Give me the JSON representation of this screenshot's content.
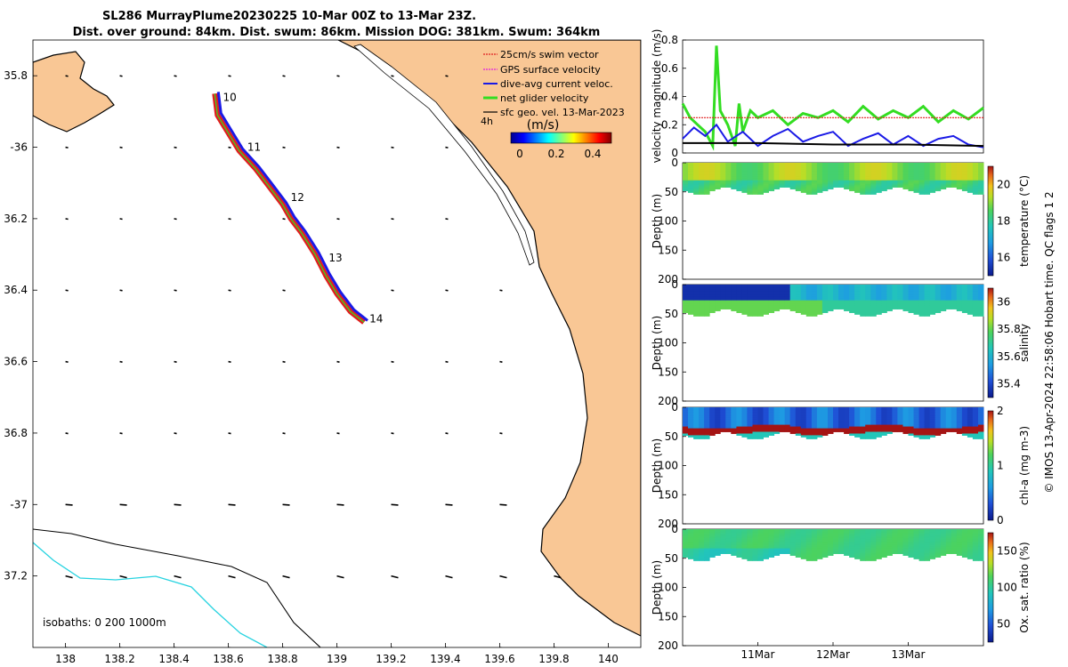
{
  "title": {
    "line1": "SL286 MurrayPlume20230225 10-Mar 00Z to 13-Mar 23Z.",
    "line2": "Dist. over ground: 84km. Dist. swum: 86km. Mission DOG: 381km. Swum: 364km"
  },
  "colors": {
    "land": "#f9c795",
    "ocean": "#ffffff",
    "isobath_200": "#000000",
    "isobath_1000": "#27d3e0",
    "swim": "#e02020",
    "gps": "#e020e0",
    "dive_avg": "#1a1ae6",
    "net": "#33dd22",
    "geo": "#000000"
  },
  "chart_data": [
    {
      "type": "map",
      "name": "glider-track-map",
      "xlim": [
        137.88,
        140.12
      ],
      "ylim": [
        -37.4,
        -35.7
      ],
      "x_ticks": [
        138,
        138.2,
        138.4,
        138.6,
        138.8,
        139,
        139.2,
        139.4,
        139.6,
        139.8,
        140
      ],
      "x_tick_labels": [
        "138",
        "138.2",
        "138.4",
        "138.6",
        "138.8",
        "139",
        "139.2",
        "139.4",
        "139.6",
        "139.8",
        "140"
      ],
      "y_ticks": [
        -35.8,
        -36,
        -36.2,
        -36.4,
        -36.6,
        -36.8,
        -37,
        -37.2
      ],
      "y_tick_labels": [
        "35.8",
        "-36",
        "36.2",
        "36.4",
        "36.6",
        "36.8",
        "-37",
        "37.2"
      ],
      "legend": [
        {
          "label": "25cm/s swim vector",
          "color": "#e02020"
        },
        {
          "label": "GPS surface velocity",
          "color": "#e020e0"
        },
        {
          "label": "dive-avg current veloc.",
          "color": "#1a1ae6"
        },
        {
          "label": "net glider velocity",
          "color": "#33dd22"
        },
        {
          "label": "sfc geo. vel. 13-Mar-2023",
          "color": "#000000"
        }
      ],
      "legend_extra": "4h",
      "colorbar": {
        "label": "(m/s)",
        "ticks": [
          0,
          0.2,
          0.4
        ],
        "tick_labels": [
          "0",
          "0.2",
          "0.4"
        ],
        "range": [
          0,
          0.5
        ]
      },
      "isobath_note": "isobaths: 0   200  1000m",
      "track": [
        {
          "lon": 138.55,
          "lat": -35.85
        },
        {
          "lon": 138.56,
          "lat": -35.91
        },
        {
          "lon": 138.6,
          "lat": -35.96
        },
        {
          "lon": 138.64,
          "lat": -36.01
        },
        {
          "lon": 138.7,
          "lat": -36.06
        },
        {
          "lon": 138.75,
          "lat": -36.11
        },
        {
          "lon": 138.8,
          "lat": -36.16
        },
        {
          "lon": 138.83,
          "lat": -36.2
        },
        {
          "lon": 138.87,
          "lat": -36.24
        },
        {
          "lon": 138.92,
          "lat": -36.3
        },
        {
          "lon": 138.96,
          "lat": -36.36
        },
        {
          "lon": 139.0,
          "lat": -36.41
        },
        {
          "lon": 139.05,
          "lat": -36.46
        },
        {
          "lon": 139.1,
          "lat": -36.49
        }
      ],
      "day_labels": [
        {
          "label": "10",
          "lon": 138.58,
          "lat": -35.86
        },
        {
          "label": "11",
          "lon": 138.67,
          "lat": -36.0
        },
        {
          "label": "12",
          "lon": 138.83,
          "lat": -36.14
        },
        {
          "label": "13",
          "lon": 138.97,
          "lat": -36.31
        },
        {
          "label": "14",
          "lon": 139.12,
          "lat": -36.48
        }
      ]
    },
    {
      "type": "line",
      "name": "velocity-magnitude",
      "ylabel": "velocity magnitude (m/s)",
      "ylim": [
        0,
        0.8
      ],
      "y_ticks": [
        0,
        0.2,
        0.4,
        0.6,
        0.8
      ],
      "y_tick_labels": [
        "0",
        "0.2",
        "0.4",
        "0.6",
        "0.8"
      ],
      "xlim": [
        10.0,
        14.0
      ],
      "series": [
        {
          "name": "net glider velocity",
          "color": "#33dd22",
          "x": [
            10.0,
            10.1,
            10.2,
            10.3,
            10.4,
            10.45,
            10.5,
            10.6,
            10.7,
            10.75,
            10.8,
            10.9,
            11.0,
            11.2,
            11.4,
            11.6,
            11.8,
            12.0,
            12.2,
            12.4,
            12.6,
            12.8,
            13.0,
            13.2,
            13.4,
            13.6,
            13.8,
            14.0
          ],
          "values": [
            0.35,
            0.25,
            0.2,
            0.15,
            0.05,
            0.76,
            0.3,
            0.2,
            0.05,
            0.35,
            0.15,
            0.3,
            0.25,
            0.3,
            0.2,
            0.28,
            0.25,
            0.3,
            0.22,
            0.33,
            0.24,
            0.3,
            0.25,
            0.33,
            0.22,
            0.3,
            0.24,
            0.32
          ]
        },
        {
          "name": "swim vector",
          "color": "#e02020",
          "x": [
            10.0,
            14.0
          ],
          "values": [
            0.25,
            0.25
          ]
        },
        {
          "name": "dive-avg current veloc.",
          "color": "#1a1ae6",
          "x": [
            10.0,
            10.15,
            10.3,
            10.45,
            10.6,
            10.8,
            11.0,
            11.2,
            11.4,
            11.6,
            11.8,
            12.0,
            12.2,
            12.4,
            12.6,
            12.8,
            13.0,
            13.2,
            13.4,
            13.6,
            13.8,
            14.0
          ],
          "values": [
            0.1,
            0.18,
            0.12,
            0.2,
            0.08,
            0.15,
            0.05,
            0.12,
            0.17,
            0.08,
            0.12,
            0.15,
            0.05,
            0.1,
            0.14,
            0.06,
            0.12,
            0.05,
            0.1,
            0.12,
            0.06,
            0.04
          ]
        },
        {
          "name": "sfc geo. vel.",
          "color": "#000000",
          "x": [
            10.0,
            11.0,
            12.0,
            13.0,
            14.0
          ],
          "values": [
            0.07,
            0.07,
            0.06,
            0.06,
            0.05
          ]
        }
      ]
    },
    {
      "type": "heatmap",
      "name": "temperature-section",
      "ylabel": "Depth (m)",
      "ylim": [
        0,
        200
      ],
      "y_ticks": [
        0,
        50,
        100,
        150,
        200
      ],
      "y_tick_labels": [
        "0",
        "50",
        "100",
        "150",
        "200"
      ],
      "colorbar": {
        "label": "temperature (°C)",
        "range": [
          15,
          21
        ],
        "ticks": [
          16,
          18,
          20
        ],
        "tick_labels": [
          "16",
          "18",
          "20"
        ]
      },
      "surface_value": 19.0,
      "lower_value": 18.3,
      "mixed_layer_depth_m": 30,
      "max_data_depth_m": 55
    },
    {
      "type": "heatmap",
      "name": "salinity-section",
      "ylabel": "Depth (m)",
      "ylim": [
        0,
        200
      ],
      "y_ticks": [
        0,
        50,
        100,
        150,
        200
      ],
      "y_tick_labels": [
        "0",
        "50",
        "100",
        "150",
        "200"
      ],
      "colorbar": {
        "label": "salinity",
        "range": [
          35.3,
          36.1
        ],
        "ticks": [
          35.4,
          35.6,
          35.8,
          36
        ],
        "tick_labels": [
          "35.4",
          "35.6",
          "35.8",
          "36"
        ]
      },
      "surface_value": 35.5,
      "lower_value": 35.8,
      "mixed_layer_depth_m": 25,
      "max_data_depth_m": 55
    },
    {
      "type": "heatmap",
      "name": "chlorophyll-section",
      "ylabel": "Depth (m)",
      "ylim": [
        0,
        200
      ],
      "y_ticks": [
        0,
        50,
        100,
        150,
        200
      ],
      "y_tick_labels": [
        "0",
        "50",
        "100",
        "150",
        "200"
      ],
      "colorbar": {
        "label": "chl-a (mg m-3)",
        "range": [
          0,
          2
        ],
        "ticks": [
          0,
          1,
          2
        ],
        "tick_labels": [
          "0",
          "1",
          "2"
        ]
      },
      "surface_value": 0.4,
      "max_layer_value": 2.0,
      "max_layer_depth_m": 38,
      "max_data_depth_m": 55
    },
    {
      "type": "heatmap",
      "name": "oxygen-section",
      "ylabel": "Depth (m)",
      "ylim": [
        0,
        200
      ],
      "y_ticks": [
        0,
        50,
        100,
        150,
        200
      ],
      "y_tick_labels": [
        "0",
        "50",
        "100",
        "150",
        "200"
      ],
      "x_tick_labels": [
        "11Mar",
        "12Mar",
        "13Mar"
      ],
      "x_ticks": [
        11,
        12,
        13
      ],
      "colorbar": {
        "label": "Ox. sat. ratio (%)",
        "range": [
          25,
          175
        ],
        "ticks": [
          50,
          100,
          150
        ],
        "tick_labels": [
          "50",
          "100",
          "150"
        ]
      },
      "surface_value": 108,
      "max_data_depth_m": 55
    }
  ],
  "side_note": "© IMOS 13-Apr-2024 22:58:06 Hobart time. QC flags 1  2"
}
